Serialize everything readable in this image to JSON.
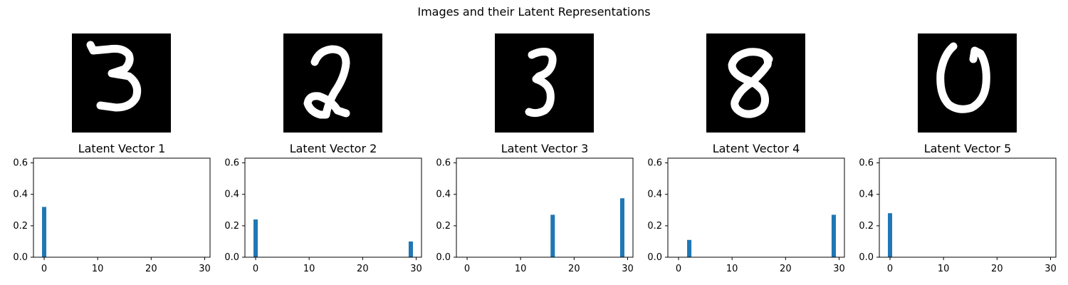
{
  "chart_data": {
    "title": "Images and their Latent Representations",
    "colors": {
      "bar": "#1f77b4",
      "image_background": "#000000",
      "stroke": "#ffffff"
    },
    "images": [
      {
        "digit_icon": "handwritten-digit-3"
      },
      {
        "digit_icon": "handwritten-digit-2"
      },
      {
        "digit_icon": "handwritten-digit-3"
      },
      {
        "digit_icon": "handwritten-digit-8"
      },
      {
        "digit_icon": "handwritten-digit-0"
      }
    ],
    "subplots": [
      {
        "type": "bar",
        "title": "Latent Vector 1",
        "x": [
          0
        ],
        "values": [
          0.32
        ]
      },
      {
        "type": "bar",
        "title": "Latent Vector 2",
        "x": [
          0,
          29
        ],
        "values": [
          0.24,
          0.1
        ]
      },
      {
        "type": "bar",
        "title": "Latent Vector 3",
        "x": [
          16,
          29
        ],
        "values": [
          0.27,
          0.375
        ]
      },
      {
        "type": "bar",
        "title": "Latent Vector 4",
        "x": [
          2,
          29
        ],
        "values": [
          0.11,
          0.27
        ]
      },
      {
        "type": "bar",
        "title": "Latent Vector 5",
        "x": [
          0
        ],
        "values": [
          0.28
        ]
      }
    ],
    "xlim": [
      -2,
      31
    ],
    "ylim": [
      0,
      0.63
    ],
    "xticks": [
      "0",
      "10",
      "20",
      "30"
    ],
    "yticks": [
      "0.0",
      "0.2",
      "0.4",
      "0.6"
    ]
  }
}
